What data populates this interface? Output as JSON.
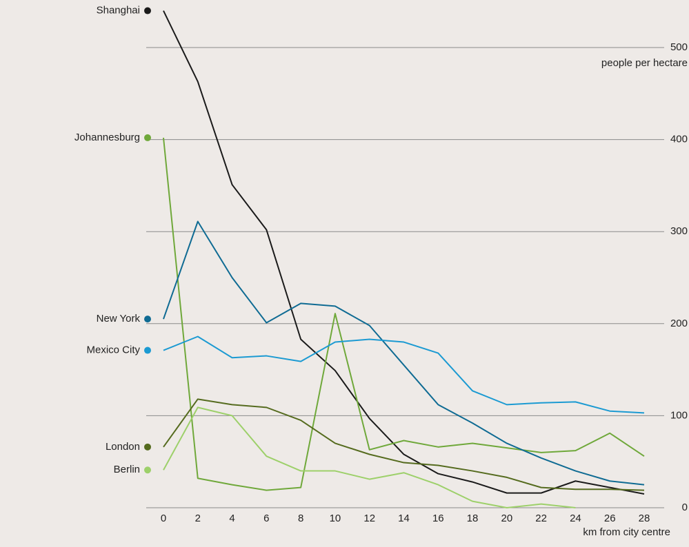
{
  "chart_data": {
    "type": "line",
    "x_label": "km from city centre",
    "y_label": "people per hectare",
    "x": [
      0,
      2,
      4,
      6,
      8,
      10,
      12,
      14,
      16,
      18,
      20,
      22,
      24,
      26,
      28
    ],
    "xlim": [
      0,
      28
    ],
    "ylim": [
      0,
      500
    ],
    "yticks": [
      0,
      100,
      200,
      300,
      400,
      500
    ],
    "grid": true,
    "legend": "left",
    "series": [
      {
        "name": "Shanghai",
        "color": "#1a1a1a",
        "values": [
          540,
          463,
          351,
          302,
          183,
          149,
          97,
          58,
          37,
          28,
          16,
          16,
          29,
          22,
          15
        ]
      },
      {
        "name": "Johannesburg",
        "color": "#6fa83a",
        "values": [
          402,
          32,
          25,
          19,
          22,
          211,
          63,
          73,
          66,
          70,
          65,
          60,
          62,
          81,
          56
        ]
      },
      {
        "name": "New York",
        "color": "#0f6b93",
        "values": [
          205,
          311,
          250,
          201,
          222,
          219,
          198,
          155,
          112,
          92,
          70,
          54,
          40,
          29,
          25
        ]
      },
      {
        "name": "Mexico City",
        "color": "#1b9ad2",
        "values": [
          171,
          186,
          163,
          165,
          159,
          180,
          183,
          180,
          168,
          127,
          112,
          114,
          115,
          105,
          103
        ]
      },
      {
        "name": "London",
        "color": "#556b1e",
        "values": [
          66,
          118,
          112,
          109,
          95,
          70,
          58,
          49,
          46,
          40,
          33,
          22,
          20,
          20,
          19
        ]
      },
      {
        "name": "Berlin",
        "color": "#9dd06a",
        "values": [
          41,
          109,
          100,
          56,
          40,
          40,
          31,
          38,
          25,
          7,
          0,
          4,
          0,
          null,
          null
        ]
      }
    ]
  }
}
